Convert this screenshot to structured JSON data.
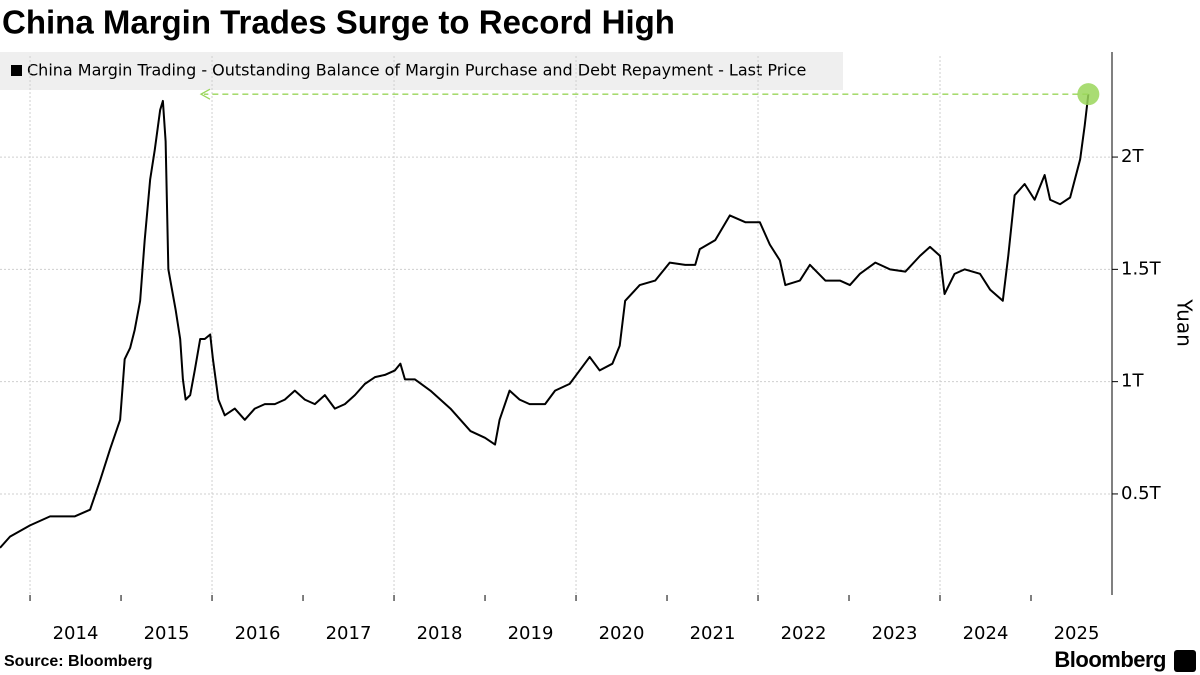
{
  "chart_data": {
    "type": "line",
    "title": "China Margin Trades Surge to Record High",
    "ylabel": "Yuan",
    "source": "Source: Bloomberg",
    "brand": "Bloomberg",
    "series": [
      {
        "name": "China Margin Trading - Outstanding Balance of Margin Purchase and Debt Repayment - Last Price",
        "color": "#000000",
        "x": [
          2013.67,
          2013.78,
          2014.0,
          2014.22,
          2014.33,
          2014.49,
          2014.66,
          2014.77,
          2014.88,
          2014.99,
          2015.04,
          2015.1,
          2015.15,
          2015.21,
          2015.26,
          2015.32,
          2015.37,
          2015.43,
          2015.46,
          2015.49,
          2015.52,
          2015.56,
          2015.6,
          2015.65,
          2015.68,
          2015.71,
          2015.76,
          2015.81,
          2015.87,
          2015.92,
          2015.98,
          2016.01,
          2016.07,
          2016.14,
          2016.25,
          2016.36,
          2016.47,
          2016.58,
          2016.69,
          2016.8,
          2016.91,
          2017.02,
          2017.13,
          2017.24,
          2017.35,
          2017.46,
          2017.57,
          2017.68,
          2017.79,
          2017.9,
          2018.01,
          2018.07,
          2018.12,
          2018.23,
          2018.4,
          2018.51,
          2018.62,
          2018.73,
          2018.84,
          2019.0,
          2019.11,
          2019.16,
          2019.27,
          2019.38,
          2019.49,
          2019.66,
          2019.77,
          2019.93,
          2020.04,
          2020.15,
          2020.26,
          2020.4,
          2020.48,
          2020.54,
          2020.7,
          2020.87,
          2021.03,
          2021.2,
          2021.31,
          2021.36,
          2021.53,
          2021.69,
          2021.86,
          2022.02,
          2022.13,
          2022.24,
          2022.3,
          2022.46,
          2022.57,
          2022.74,
          2022.9,
          2023.01,
          2023.12,
          2023.29,
          2023.45,
          2023.62,
          2023.78,
          2023.89,
          2024.0,
          2024.05,
          2024.16,
          2024.27,
          2024.44,
          2024.55,
          2024.69,
          2024.75,
          2024.82,
          2024.93,
          2025.04,
          2025.15,
          2025.21,
          2025.32,
          2025.43,
          2025.54,
          2025.59,
          2025.63
        ],
        "values": [
          0.26,
          0.31,
          0.36,
          0.4,
          0.4,
          0.4,
          0.43,
          0.56,
          0.7,
          0.83,
          1.1,
          1.15,
          1.23,
          1.36,
          1.63,
          1.9,
          2.03,
          2.21,
          2.25,
          2.07,
          1.5,
          1.41,
          1.32,
          1.19,
          1.01,
          0.92,
          0.94,
          1.05,
          1.19,
          1.19,
          1.21,
          1.1,
          0.92,
          0.85,
          0.88,
          0.83,
          0.88,
          0.9,
          0.9,
          0.92,
          0.96,
          0.92,
          0.9,
          0.94,
          0.88,
          0.9,
          0.94,
          0.99,
          1.02,
          1.03,
          1.05,
          1.08,
          1.01,
          1.01,
          0.96,
          0.92,
          0.88,
          0.83,
          0.78,
          0.75,
          0.72,
          0.83,
          0.96,
          0.92,
          0.9,
          0.9,
          0.96,
          0.99,
          1.05,
          1.11,
          1.05,
          1.08,
          1.16,
          1.36,
          1.43,
          1.45,
          1.53,
          1.52,
          1.52,
          1.59,
          1.63,
          1.74,
          1.71,
          1.71,
          1.61,
          1.54,
          1.43,
          1.45,
          1.52,
          1.45,
          1.45,
          1.43,
          1.48,
          1.53,
          1.5,
          1.49,
          1.56,
          1.6,
          1.56,
          1.39,
          1.48,
          1.5,
          1.48,
          1.41,
          1.36,
          1.56,
          1.83,
          1.88,
          1.81,
          1.92,
          1.81,
          1.79,
          1.82,
          1.99,
          2.14,
          2.28
        ]
      }
    ],
    "xlim": [
      2013.67,
      2025.89
    ],
    "xticks": [
      2014,
      2015,
      2016,
      2017,
      2018,
      2019,
      2020,
      2021,
      2022,
      2023,
      2024,
      2025
    ],
    "ylim": [
      0.05,
      2.45
    ],
    "yticks": [
      {
        "value": 0.5,
        "label": "0.5T"
      },
      {
        "value": 1,
        "label": "1T"
      },
      {
        "value": 1.5,
        "label": "1.5T"
      },
      {
        "value": 2,
        "label": "2T"
      }
    ],
    "grid": true,
    "highlight_color": "#9ad65a"
  }
}
